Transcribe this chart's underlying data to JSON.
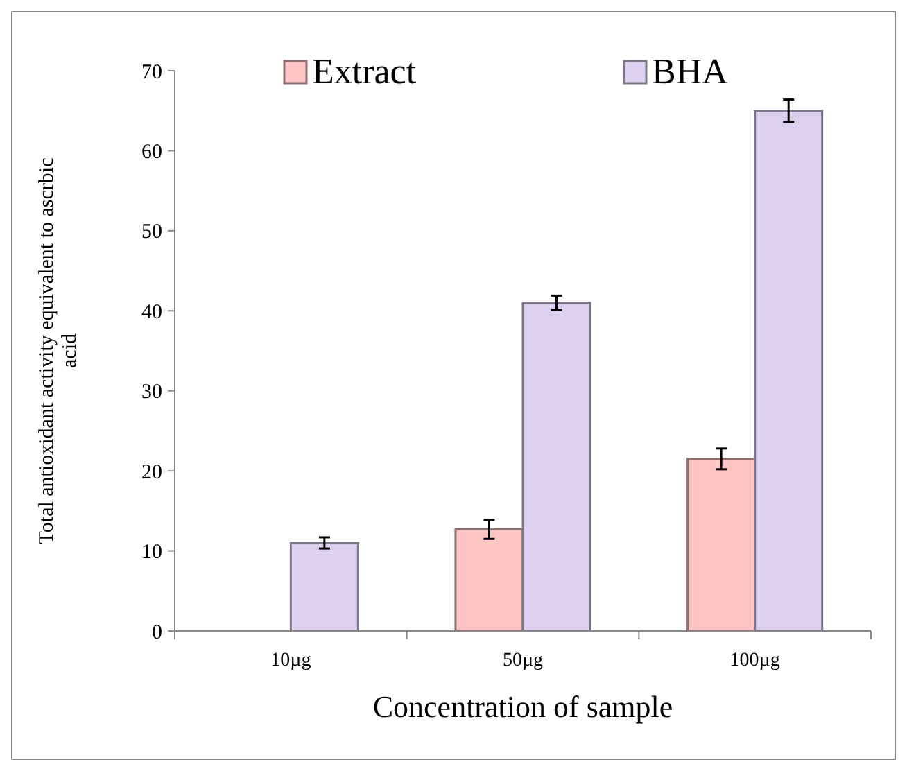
{
  "chart_data": {
    "type": "bar",
    "xlabel": "Concentration of sample",
    "ylabel": "Total antioxidant activity equivalent to ascrbic acid",
    "categories": [
      "10µg",
      "50µg",
      "100µg"
    ],
    "series": [
      {
        "name": "Extract",
        "color": "#fdc4c4",
        "values": [
          0,
          12.7,
          21.5
        ],
        "errors": [
          null,
          1.2,
          1.3
        ]
      },
      {
        "name": "BHA",
        "color": "#ddd0ef",
        "values": [
          11,
          41,
          65
        ],
        "errors": [
          0.7,
          0.9,
          1.4
        ]
      }
    ],
    "ylim": [
      0,
      70
    ],
    "yticks": [
      0,
      10,
      20,
      30,
      40,
      50,
      60,
      70
    ],
    "grid": false,
    "legend": "top"
  }
}
